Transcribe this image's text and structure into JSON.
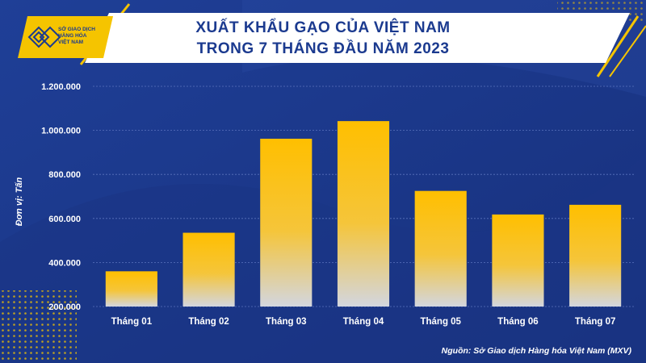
{
  "header": {
    "title_line1": "XUẤT KHẨU GẠO CỦA VIỆT NAM",
    "title_line2": "TRONG 7 THÁNG ĐẦU NĂM 2023",
    "logo_line1": "SỞ GIAO DỊCH",
    "logo_line2": "HÀNG HÓA",
    "logo_line3": "VIỆT NAM"
  },
  "source": "Nguồn: Sở Giao dịch Hàng hóa Việt Nam (MXV)",
  "colors": {
    "background": "#1b3a8f",
    "bar_top": "#ffbf00",
    "bar_bottom": "#d3d6df",
    "accent": "#f5c400",
    "title": "#1b3a8f"
  },
  "chart_data": {
    "type": "bar",
    "title": "XUẤT KHẨU GẠO CỦA VIỆT NAM TRONG 7 THÁNG ĐẦU NĂM 2023",
    "ylabel": "Đơn vị: Tấn",
    "xlabel": "",
    "categories": [
      "Tháng 01",
      "Tháng 02",
      "Tháng 03",
      "Tháng 04",
      "Tháng 05",
      "Tháng 06",
      "Tháng 07"
    ],
    "values": [
      360000,
      535000,
      962000,
      1042000,
      725000,
      618000,
      662000
    ],
    "ylim": [
      200000,
      1200000
    ],
    "yticks": [
      200000,
      400000,
      600000,
      800000,
      1000000,
      1200000
    ],
    "ytick_labels": [
      "200.000",
      "400.000",
      "600.000",
      "800.000",
      "1.000.000",
      "1.200.000"
    ],
    "grid": true,
    "legend": "none"
  }
}
